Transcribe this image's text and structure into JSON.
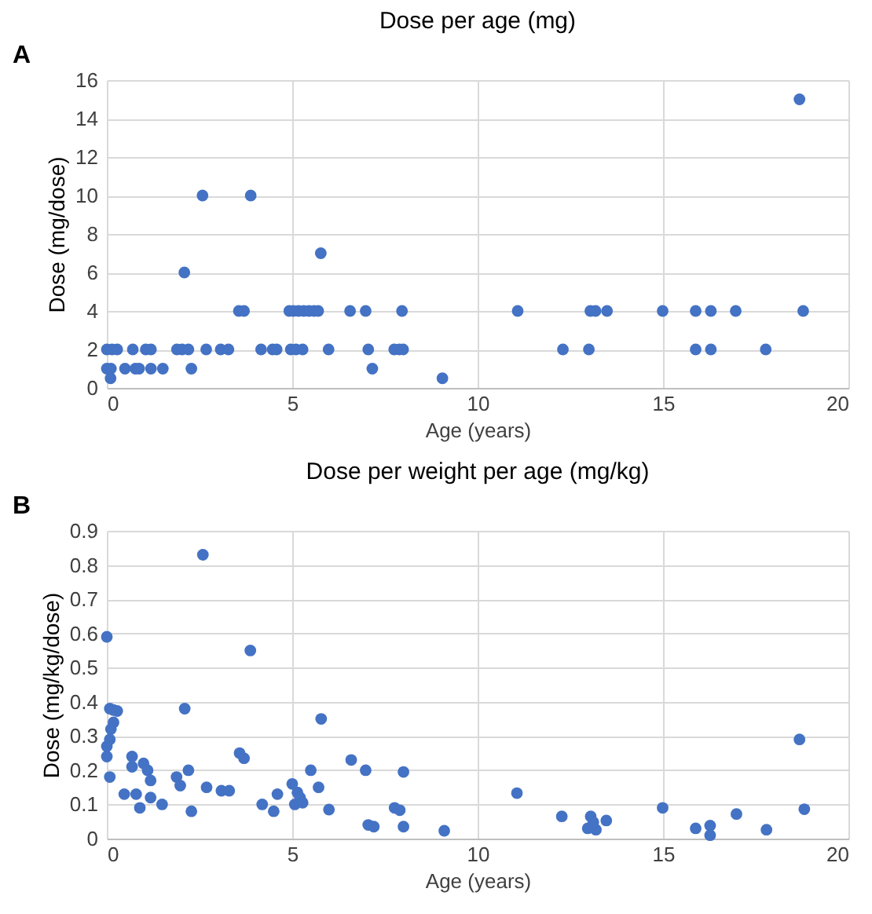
{
  "chart_data": [
    {
      "type": "scatter",
      "title": "Dose per age (mg)",
      "xlabel": "Age (years)",
      "ylabel": "Dose (mg/dose)",
      "annotations": [
        "A"
      ],
      "xlim": [
        0,
        20
      ],
      "xticks": [
        0,
        5,
        10,
        15,
        20
      ],
      "ylim": [
        0,
        16
      ],
      "yticks": [
        0,
        2,
        4,
        6,
        8,
        10,
        12,
        14,
        16
      ],
      "grid": true,
      "marker": "circle",
      "series": [
        {
          "color": "#4472c4",
          "x": [
            0,
            0.14,
            0.28,
            0.7,
            1.05,
            1.19,
            1.89,
            2.03,
            2.2,
            2.68,
            3.07,
            3.28,
            4.16,
            4.47,
            4.58,
            4.96,
            5.1,
            5.28,
            5.98,
            7.05,
            7.75,
            7.89,
            7.99,
            0,
            0.11,
            0.49,
            0.77,
            0.87,
            1.19,
            1.51,
            2.28,
            7.16,
            0.1,
            9.05,
            2.09,
            2.58,
            3.88,
            5.77,
            3.56,
            3.7,
            4.92,
            5.03,
            5.17,
            5.31,
            5.45,
            5.59,
            5.7,
            6.56,
            6.98,
            7.96,
            11.08,
            13.04,
            13.18,
            13.49,
            14.99,
            15.88,
            16.29,
            16.96,
            18.78,
            12.3,
            13.0,
            15.88,
            16.29,
            17.77,
            18.68
          ],
          "values": [
            2,
            2,
            2,
            2,
            2,
            2,
            2,
            2,
            2,
            2,
            2,
            2,
            2,
            2,
            2,
            2,
            2,
            2,
            2,
            2,
            2,
            2,
            2,
            1,
            1,
            1,
            1,
            1,
            1,
            1,
            1,
            1,
            0.5,
            0.5,
            6,
            10,
            10,
            7,
            4,
            4,
            4,
            4,
            4,
            4,
            4,
            4,
            4,
            4,
            4,
            4,
            4,
            4,
            4,
            4,
            4,
            4,
            4,
            4,
            4,
            2,
            2,
            2,
            2,
            2,
            15
          ]
        }
      ]
    },
    {
      "type": "scatter",
      "title": "Dose per weight per age (mg/kg)",
      "xlabel": "Age (years)",
      "ylabel": "Dose (mg/kg/dose)",
      "annotations": [
        "B"
      ],
      "xlim": [
        0,
        20
      ],
      "xticks": [
        0,
        5,
        10,
        15,
        20
      ],
      "ylim": [
        0,
        0.9
      ],
      "yticks": [
        0,
        0.1,
        0.2,
        0.3,
        0.4,
        0.5,
        0.6,
        0.7,
        0.8,
        0.9
      ],
      "grid": true,
      "marker": "circle",
      "series": [
        {
          "color": "#4472c4",
          "x": [
            0,
            0.08,
            0.18,
            0.28,
            0.18,
            0.11,
            0.08,
            0,
            0,
            0.08,
            0.47,
            0.68,
            0.68,
            0.79,
            0.89,
            0.99,
            1.1,
            1.18,
            1.18,
            1.49,
            1.88,
            1.98,
            2.1,
            2.2,
            2.28,
            2.59,
            2.69,
            3.09,
            3.3,
            3.58,
            3.7,
            3.87,
            4.19,
            4.5,
            4.6,
            5.0,
            5.07,
            5.14,
            5.21,
            5.28,
            5.5,
            5.71,
            5.78,
            5.99,
            6.59,
            6.98,
            7.05,
            7.2,
            7.76,
            7.9,
            8.0,
            8.0,
            9.1,
            11.06,
            12.27,
            13.05,
            12.97,
            13.19,
            13.12,
            13.47,
            14.99,
            15.88,
            16.27,
            16.27,
            16.98,
            17.79,
            18.68,
            18.81
          ],
          "values": [
            0.59,
            0.38,
            0.376,
            0.373,
            0.34,
            0.32,
            0.29,
            0.27,
            0.24,
            0.18,
            0.13,
            0.24,
            0.21,
            0.13,
            0.09,
            0.22,
            0.2,
            0.17,
            0.12,
            0.1,
            0.18,
            0.155,
            0.38,
            0.2,
            0.08,
            0.83,
            0.15,
            0.14,
            0.14,
            0.25,
            0.235,
            0.55,
            0.1,
            0.08,
            0.13,
            0.16,
            0.1,
            0.135,
            0.12,
            0.105,
            0.2,
            0.15,
            0.35,
            0.085,
            0.23,
            0.2,
            0.04,
            0.035,
            0.09,
            0.083,
            0.195,
            0.035,
            0.023,
            0.133,
            0.065,
            0.065,
            0.03,
            0.026,
            0.048,
            0.053,
            0.09,
            0.03,
            0.038,
            0.01,
            0.072,
            0.026,
            0.29,
            0.086
          ]
        }
      ]
    }
  ]
}
